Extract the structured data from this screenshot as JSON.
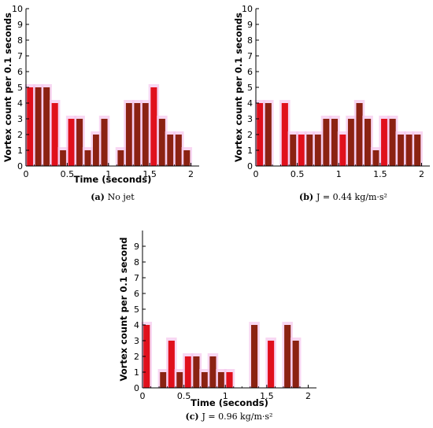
{
  "colors": {
    "bar": "#8b2212",
    "bar_highlight": "#e0101c",
    "glow": "#f6c9ee",
    "axis": "#000000"
  },
  "chart_data": [
    {
      "type": "bar",
      "caption_label": "(a)",
      "caption_text": "No jet",
      "xlabel": "Time (seconds)",
      "ylabel": "Vortex count per 0.1 seconds",
      "xlim": [
        0,
        2.1
      ],
      "ylim": [
        0,
        10
      ],
      "xticks": [
        "0",
        "0.5",
        "1",
        "1.5",
        "2"
      ],
      "yticks": [
        "0",
        "1",
        "2",
        "3",
        "4",
        "5",
        "6",
        "7",
        "8",
        "9",
        "10"
      ],
      "x": [
        0.05,
        0.15,
        0.25,
        0.35,
        0.45,
        0.55,
        0.65,
        0.75,
        0.85,
        0.95,
        1.05,
        1.15,
        1.25,
        1.35,
        1.45,
        1.55,
        1.65,
        1.75,
        1.85,
        1.95,
        2.05
      ],
      "values": [
        5,
        5,
        5,
        4,
        1,
        3,
        3,
        1,
        2,
        3,
        0,
        1,
        4,
        4,
        4,
        5,
        3,
        2,
        2,
        1,
        0
      ]
    },
    {
      "type": "bar",
      "caption_label": "(b)",
      "caption_text": "J = 0.44  kg/m·s²",
      "xlabel": "",
      "ylabel": "Vortex count per 0.1 seconds",
      "xlim": [
        0,
        2.1
      ],
      "ylim": [
        0,
        10
      ],
      "xticks": [
        "0",
        "0.5",
        "1",
        "1.5",
        "2"
      ],
      "yticks": [
        "0",
        "1",
        "2",
        "3",
        "4",
        "5",
        "6",
        "7",
        "8",
        "9",
        "10"
      ],
      "x": [
        0.05,
        0.15,
        0.25,
        0.35,
        0.45,
        0.55,
        0.65,
        0.75,
        0.85,
        0.95,
        1.05,
        1.15,
        1.25,
        1.35,
        1.45,
        1.55,
        1.65,
        1.75,
        1.85,
        1.95,
        2.05
      ],
      "values": [
        4,
        4,
        0,
        4,
        2,
        2,
        2,
        2,
        3,
        3,
        2,
        3,
        4,
        3,
        1,
        3,
        3,
        2,
        2,
        2,
        0
      ]
    },
    {
      "type": "bar",
      "caption_label": "(c)",
      "caption_text": "J = 0.96  kg/m·s²",
      "xlabel": "Time (seconds)",
      "ylabel": "Vortex count per 0.1 second",
      "xlim": [
        0,
        2.1
      ],
      "ylim": [
        0,
        10
      ],
      "xticks": [
        "0",
        "0.5",
        "1",
        "1.5",
        "2"
      ],
      "yticks": [
        "0",
        "1",
        "2",
        "3",
        "4",
        "5",
        "6",
        "7",
        "8",
        "9"
      ],
      "x": [
        0.05,
        0.15,
        0.25,
        0.35,
        0.45,
        0.55,
        0.65,
        0.75,
        0.85,
        0.95,
        1.05,
        1.15,
        1.25,
        1.35,
        1.45,
        1.55,
        1.65,
        1.75,
        1.85,
        1.95,
        2.05
      ],
      "values": [
        4,
        0,
        1,
        3,
        1,
        2,
        2,
        1,
        2,
        1,
        1,
        0,
        0,
        4,
        0,
        3,
        0,
        4,
        3,
        0,
        0
      ]
    }
  ]
}
